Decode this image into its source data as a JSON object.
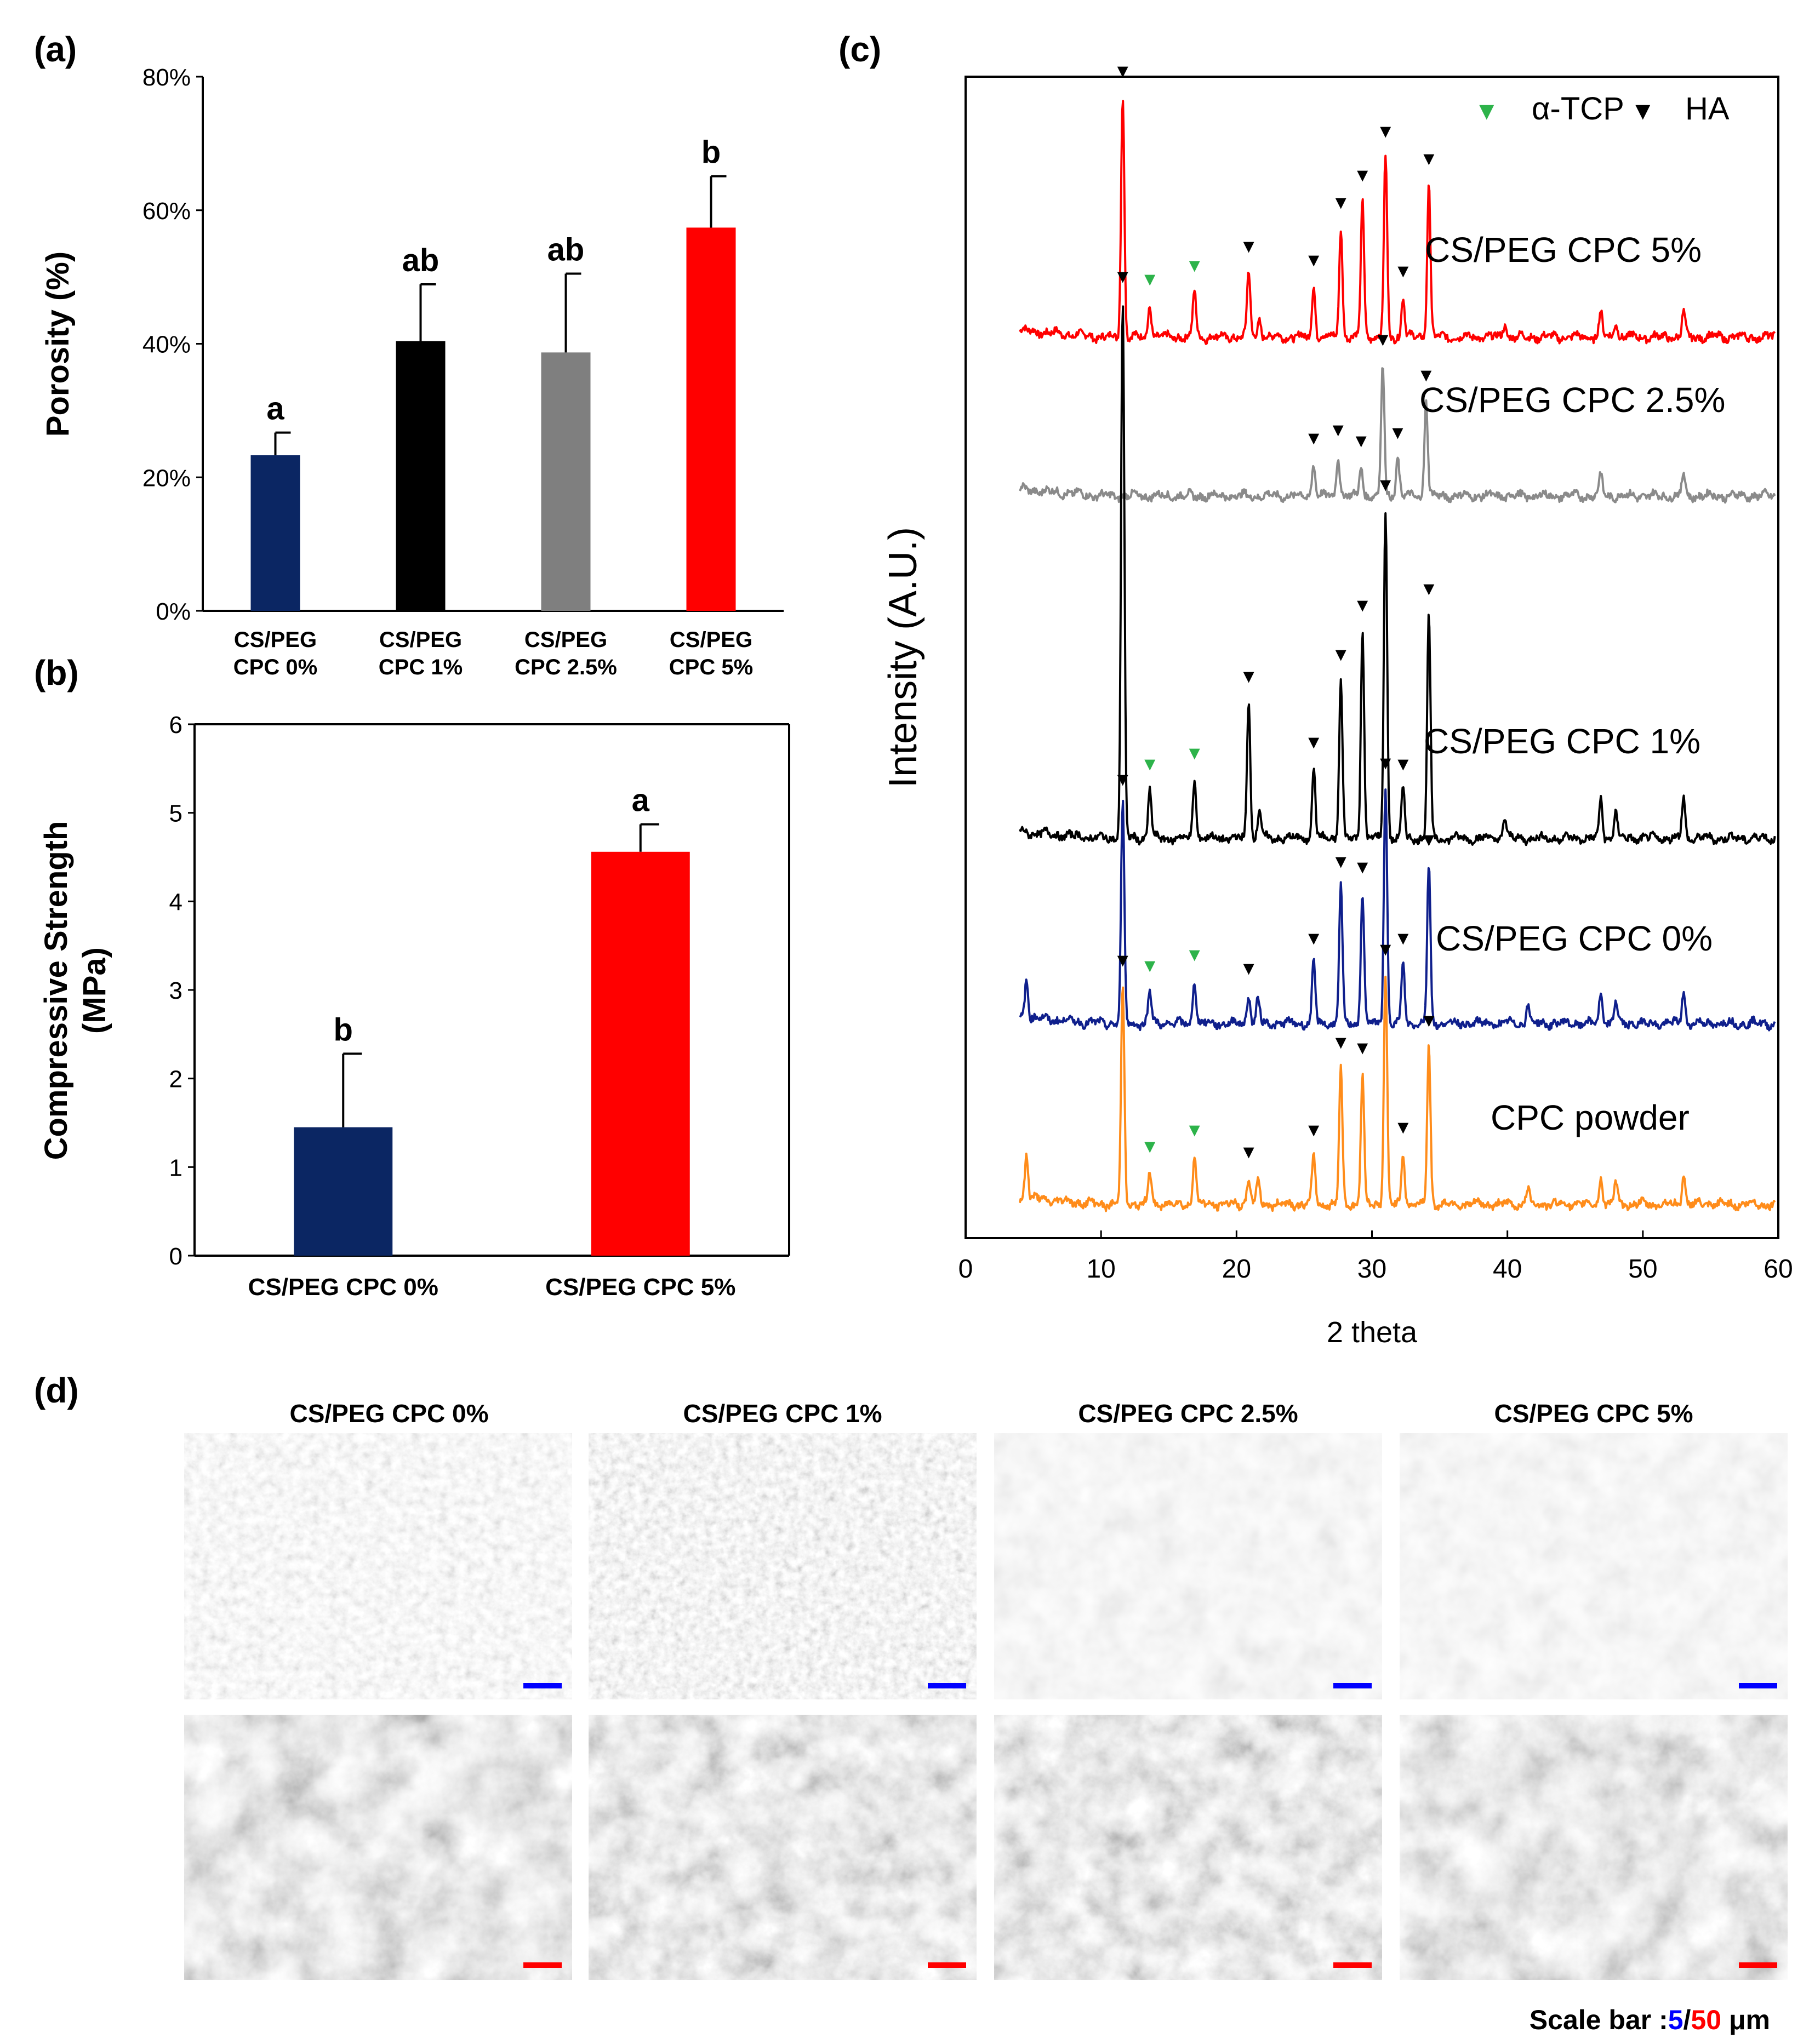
{
  "panels": {
    "a": "(a)",
    "b": "(b)",
    "c": "(c)",
    "d": "(d)"
  },
  "colors": {
    "navy": "#0b2663",
    "black": "#000000",
    "gray": "#7f7f7f",
    "red": "#ff0000",
    "orange": "#ff8c1a",
    "xrd_navy": "#0f1f8c",
    "xrd_gray": "#8a8a8a",
    "green": "#2db34a",
    "scale_blue": "#0000ff",
    "scale_red": "#ff0000"
  },
  "chart_data": [
    {
      "id": "a",
      "type": "bar",
      "ylabel": "Porosity (%)",
      "ylim": [
        0,
        80
      ],
      "yticks": [
        0,
        20,
        40,
        60,
        80
      ],
      "ytick_labels": [
        "0%",
        "20%",
        "40%",
        "60%",
        "80%"
      ],
      "categories": [
        [
          "CS/PEG",
          "CPC 0%"
        ],
        [
          "CS/PEG",
          "CPC 1%"
        ],
        [
          "CS/PEG",
          "CPC 2.5%"
        ],
        [
          "CS/PEG",
          "CPC 5%"
        ]
      ],
      "values": [
        23.3,
        40.4,
        38.7,
        57.4
      ],
      "errors": [
        3.4,
        8.5,
        11.8,
        7.7
      ],
      "sig_labels": [
        "a",
        "ab",
        "ab",
        "b"
      ],
      "bar_colors": [
        "#0b2663",
        "#000000",
        "#7f7f7f",
        "#ff0000"
      ]
    },
    {
      "id": "b",
      "type": "bar",
      "ylabel_lines": [
        "Compressive Strength",
        "(MPa)"
      ],
      "ylim": [
        0,
        6
      ],
      "yticks": [
        0,
        1,
        2,
        3,
        4,
        5,
        6
      ],
      "ytick_labels": [
        "0",
        "1",
        "2",
        "3",
        "4",
        "5",
        "6"
      ],
      "categories": [
        "CS/PEG CPC 0%",
        "CS/PEG CPC 5%"
      ],
      "values": [
        1.45,
        4.56
      ],
      "errors": [
        0.83,
        0.31
      ],
      "sig_labels": [
        "b",
        "a"
      ],
      "bar_colors": [
        "#0b2663",
        "#ff0000"
      ]
    },
    {
      "id": "c",
      "type": "line",
      "xlabel": "2 theta",
      "ylabel": "Intensity (A.U.)",
      "xlim": [
        0,
        60
      ],
      "xticks": [
        0,
        10,
        20,
        30,
        40,
        50,
        60
      ],
      "xtick_labels": [
        "0",
        "10",
        "20",
        "30",
        "40",
        "50",
        "60"
      ],
      "legend": [
        {
          "marker": "▼",
          "label": "α-TCP",
          "color": "#2db34a"
        },
        {
          "marker": "▼",
          "label": "HA",
          "color": "#000000"
        }
      ],
      "series": [
        {
          "name": "CS/PEG CPC 5%",
          "color": "#ff0000",
          "peaks": [
            [
              11.6,
              440
            ],
            [
              13.6,
              60
            ],
            [
              16.9,
              85
            ],
            [
              20.9,
              120
            ],
            [
              21.7,
              35
            ],
            [
              25.7,
              95
            ],
            [
              27.7,
              200
            ],
            [
              29.3,
              250
            ],
            [
              31.0,
              330
            ],
            [
              32.3,
              75
            ],
            [
              34.2,
              280
            ],
            [
              39.8,
              25
            ],
            [
              46.9,
              45
            ],
            [
              48.0,
              30
            ],
            [
              53.0,
              45
            ]
          ],
          "ha_markers": [
            11.6,
            20.9,
            25.7,
            27.7,
            29.3,
            31.0,
            32.3,
            34.2
          ],
          "tcp_markers": [
            13.6,
            16.9
          ]
        },
        {
          "name": "CS/PEG CPC 2.5%",
          "color": "#8a8a8a",
          "peaks": [
            [
              25.7,
              60
            ],
            [
              27.5,
              75
            ],
            [
              29.2,
              55
            ],
            [
              30.8,
              240
            ],
            [
              31.9,
              70
            ],
            [
              34.0,
              175
            ],
            [
              46.9,
              40
            ],
            [
              53.0,
              40
            ]
          ],
          "ha_markers": [
            25.7,
            27.5,
            29.2,
            30.8,
            31.9,
            34.0
          ],
          "tcp_markers": []
        },
        {
          "name": "CS/PEG CPC 1%",
          "color": "#000000",
          "peaks": [
            [
              11.6,
              980
            ],
            [
              13.6,
              90
            ],
            [
              16.9,
              110
            ],
            [
              20.9,
              250
            ],
            [
              21.7,
              55
            ],
            [
              25.7,
              130
            ],
            [
              27.7,
              290
            ],
            [
              29.3,
              380
            ],
            [
              31.0,
              600
            ],
            [
              32.3,
              90
            ],
            [
              34.2,
              410
            ],
            [
              39.8,
              40
            ],
            [
              46.9,
              70
            ],
            [
              48.0,
              50
            ],
            [
              53.0,
              75
            ]
          ],
          "ha_markers": [
            11.6,
            20.9,
            25.7,
            27.7,
            29.3,
            31.0,
            32.3,
            34.2
          ],
          "tcp_markers": [
            13.6,
            16.9
          ]
        },
        {
          "name": "CS/PEG CPC 0%",
          "color": "#0f1f8c",
          "peaks": [
            [
              4.5,
              70
            ],
            [
              11.6,
              400
            ],
            [
              13.6,
              60
            ],
            [
              16.9,
              80
            ],
            [
              20.9,
              55
            ],
            [
              21.6,
              45
            ],
            [
              25.7,
              110
            ],
            [
              27.7,
              250
            ],
            [
              29.3,
              240
            ],
            [
              31.0,
              430
            ],
            [
              32.3,
              110
            ],
            [
              34.2,
              290
            ],
            [
              41.5,
              35
            ],
            [
              46.9,
              55
            ],
            [
              48.0,
              40
            ],
            [
              53.0,
              60
            ]
          ],
          "ha_markers": [
            11.6,
            20.9,
            25.7,
            27.7,
            29.3,
            31.0,
            32.3,
            34.2
          ],
          "tcp_markers": [
            13.6,
            16.9
          ]
        },
        {
          "name": "CPC powder",
          "color": "#ff8c1a",
          "peaks": [
            [
              4.5,
              80
            ],
            [
              11.6,
              400
            ],
            [
              13.6,
              60
            ],
            [
              16.9,
              90
            ],
            [
              20.9,
              50
            ],
            [
              21.6,
              45
            ],
            [
              25.7,
              90
            ],
            [
              27.7,
              250
            ],
            [
              29.3,
              240
            ],
            [
              31.0,
              420
            ],
            [
              32.3,
              95
            ],
            [
              34.2,
              290
            ],
            [
              41.5,
              30
            ],
            [
              46.9,
              50
            ],
            [
              48.0,
              40
            ],
            [
              53.0,
              55
            ]
          ],
          "ha_markers": [
            11.6,
            20.9,
            25.7,
            27.7,
            29.3,
            31.0,
            32.3,
            34.2
          ],
          "tcp_markers": [
            13.6,
            16.9
          ]
        }
      ]
    }
  ],
  "sem": {
    "titles": [
      "CS/PEG CPC 0%",
      "CS/PEG CPC 1%",
      "CS/PEG CPC 2.5%",
      "CS/PEG CPC 5%"
    ],
    "scale_bar": {
      "prefix": "Scale bar :",
      "low": "5",
      "sep": "/",
      "high": "50",
      "unit": " μm"
    }
  }
}
